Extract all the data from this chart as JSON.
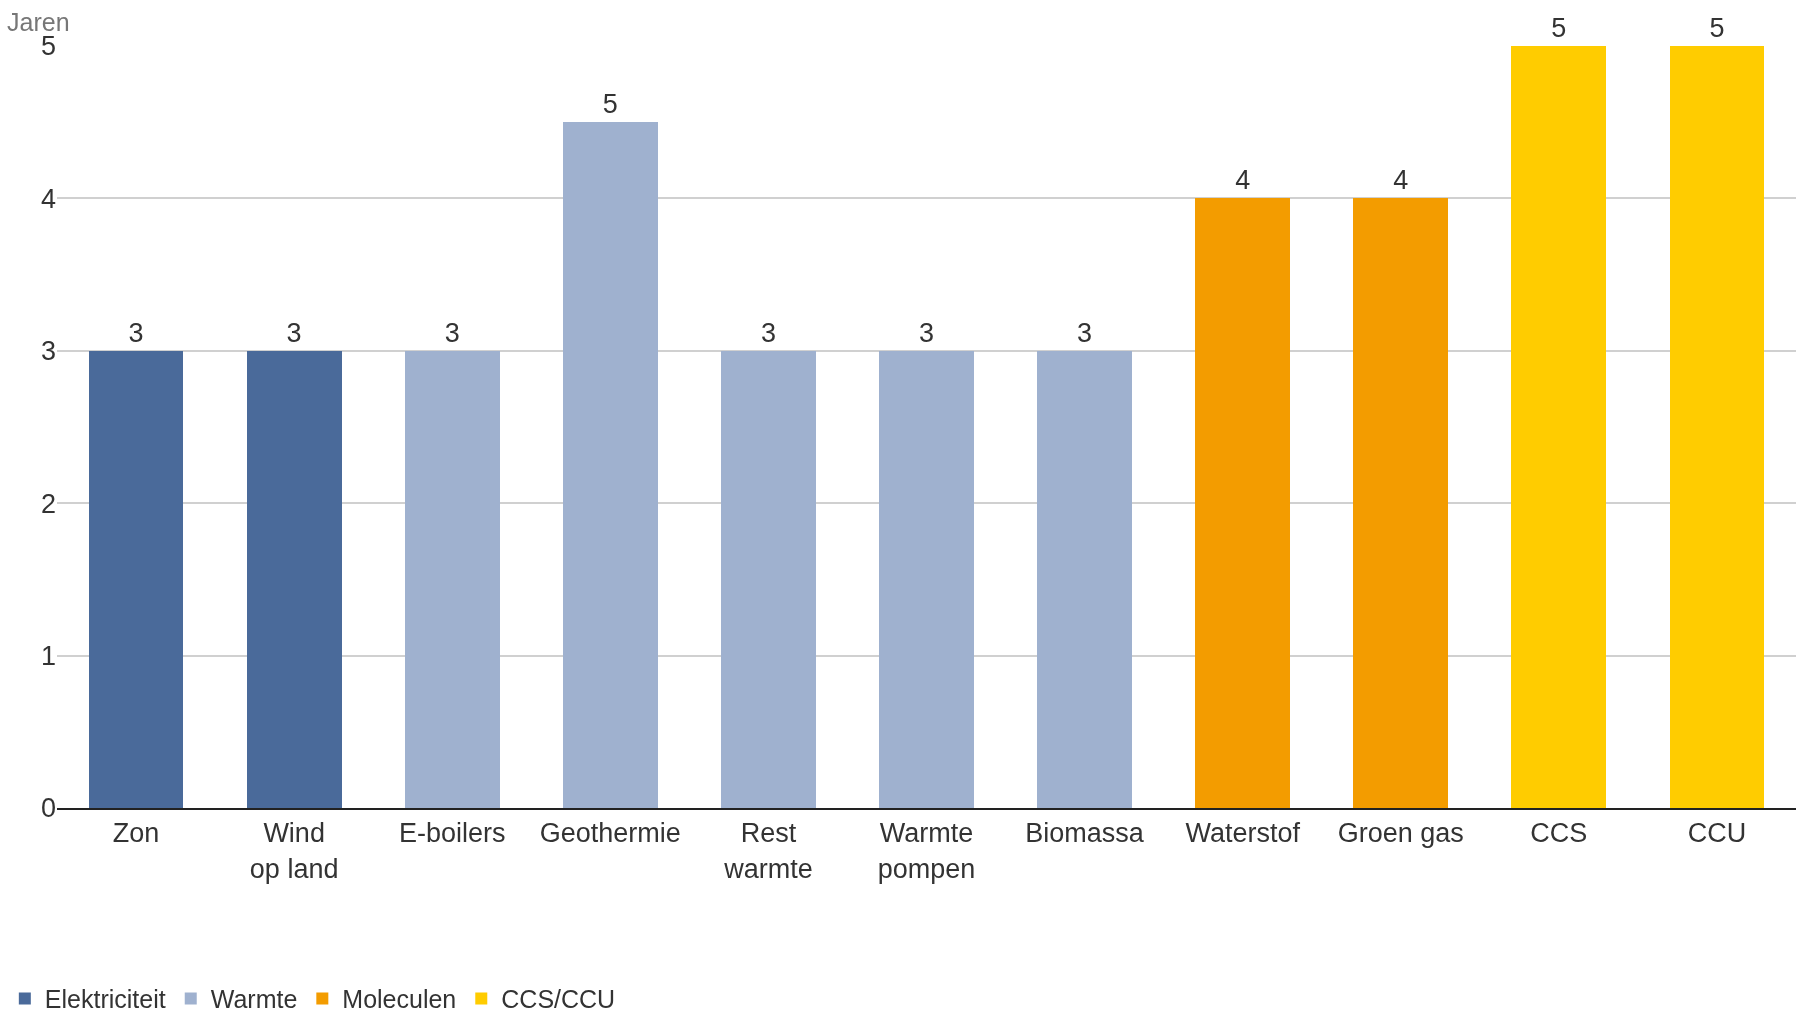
{
  "chart_data": {
    "type": "bar",
    "ylabel": "Jaren",
    "categories": [
      "Zon",
      "Wind\nop land",
      "E-boilers",
      "Geothermie",
      "Rest\nwarmte",
      "Warmte\npompen",
      "Biomassa",
      "Waterstof",
      "Groen gas",
      "CCS",
      "CCU"
    ],
    "series": [
      {
        "name": "Elektriciteit",
        "color": "#4a6a9a",
        "values": [
          3,
          3,
          null,
          null,
          null,
          null,
          null,
          null,
          null,
          null,
          null
        ],
        "value_labels": [
          "3",
          "3",
          null,
          null,
          null,
          null,
          null,
          null,
          null,
          null,
          null
        ]
      },
      {
        "name": "Warmte",
        "color": "#9fb1cf",
        "values": [
          null,
          null,
          3,
          4.5,
          3,
          3,
          3,
          null,
          null,
          null,
          null
        ],
        "value_labels": [
          null,
          null,
          "3",
          "5",
          "3",
          "3",
          "3",
          null,
          null,
          null,
          null
        ]
      },
      {
        "name": "Moleculen",
        "color": "#f39c00",
        "values": [
          null,
          null,
          null,
          null,
          null,
          null,
          null,
          4,
          4,
          null,
          null
        ],
        "value_labels": [
          null,
          null,
          null,
          null,
          null,
          null,
          null,
          "4",
          "4",
          null,
          null
        ]
      },
      {
        "name": "CCS/CCU",
        "color": "#ffcc00",
        "values": [
          null,
          null,
          null,
          null,
          null,
          null,
          null,
          null,
          null,
          5,
          5
        ],
        "value_labels": [
          null,
          null,
          null,
          null,
          null,
          null,
          null,
          null,
          null,
          "5",
          "5"
        ]
      }
    ],
    "stacked": true,
    "ylim": [
      0,
      5
    ],
    "yticks": [
      0,
      1,
      2,
      3,
      4,
      5
    ],
    "grid": "y",
    "legend": "bottom left"
  }
}
